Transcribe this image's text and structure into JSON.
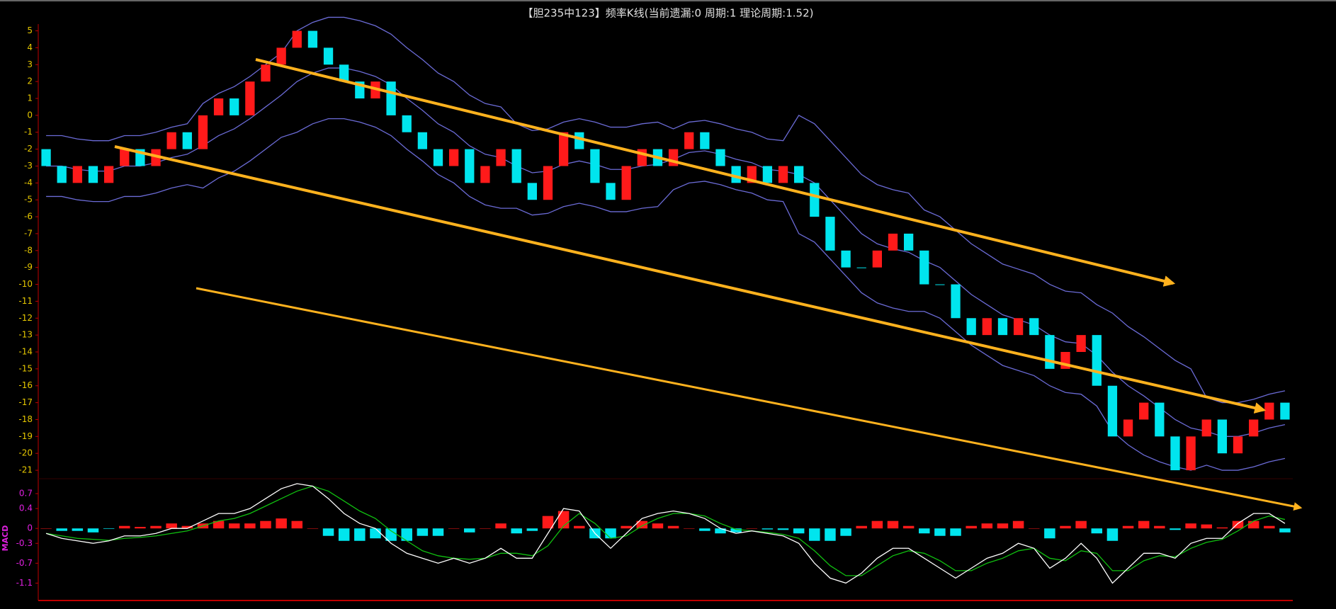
{
  "chart_data": [
    {
      "type": "candlestick",
      "title": "【胆235中123】频率K线(当前遗漏:0 周期:1 理论周期:1.52)",
      "open": [
        -2,
        -3,
        -4,
        -3,
        -4,
        -3,
        -2,
        -3,
        -2,
        -1,
        -2,
        0,
        1,
        0,
        2,
        3,
        4,
        5,
        4,
        3,
        2,
        1,
        2,
        0,
        -1,
        -2,
        -3,
        -2,
        -4,
        -3,
        -2,
        -4,
        -5,
        -3,
        -1,
        -2,
        -4,
        -5,
        -3,
        -2,
        -3,
        -2,
        -1,
        -2,
        -3,
        -4,
        -3,
        -4,
        -3,
        -4,
        -6,
        -8,
        -9,
        -9,
        -8,
        -7,
        -8,
        -10,
        -10,
        -12,
        -13,
        -12,
        -13,
        -12,
        -13,
        -15,
        -14,
        -13,
        -16,
        -19,
        -18,
        -17,
        -19,
        -21,
        -19,
        -18,
        -20,
        -19,
        -18,
        -17
      ],
      "close": [
        -3,
        -4,
        -3,
        -4,
        -3,
        -2,
        -3,
        -2,
        -1,
        -2,
        0,
        1,
        0,
        2,
        3,
        4,
        5,
        4,
        3,
        2,
        1,
        2,
        0,
        -1,
        -2,
        -3,
        -2,
        -4,
        -3,
        -2,
        -4,
        -5,
        -3,
        -1,
        -2,
        -4,
        -5,
        -3,
        -2,
        -3,
        -2,
        -1,
        -2,
        -3,
        -4,
        -3,
        -4,
        -3,
        -4,
        -6,
        -8,
        -9,
        -9,
        -8,
        -7,
        -8,
        -10,
        -10,
        -12,
        -13,
        -12,
        -13,
        -12,
        -13,
        -15,
        -14,
        -13,
        -16,
        -19,
        -18,
        -17,
        -19,
        -21,
        -19,
        -18,
        -20,
        -19,
        -18,
        -17,
        -18
      ],
      "up_color": "#ff1a1a",
      "down_color": "#00e5ee",
      "bands": {
        "upper": [
          -1.2,
          -1.2,
          -1.4,
          -1.5,
          -1.5,
          -1.2,
          -1.2,
          -1,
          -0.7,
          -0.5,
          0.7,
          1.3,
          1.7,
          2.3,
          3,
          3.7,
          5,
          5.5,
          5.8,
          5.8,
          5.6,
          5.3,
          4.8,
          4,
          3.3,
          2.5,
          2,
          1.2,
          0.7,
          0.5,
          -0.5,
          -0.9,
          -0.8,
          -0.4,
          -0.2,
          -0.4,
          -0.7,
          -0.7,
          -0.5,
          -0.4,
          -0.8,
          -0.4,
          -0.3,
          -0.5,
          -0.8,
          -1,
          -1.4,
          -1.5,
          0,
          -0.5,
          -1.5,
          -2.5,
          -3.5,
          -4.1,
          -4.4,
          -4.6,
          -5.6,
          -6,
          -6.8,
          -7.6,
          -8.2,
          -8.8,
          -9.1,
          -9.4,
          -10,
          -10.4,
          -10.5,
          -11.2,
          -11.7,
          -12.5,
          -13.1,
          -13.8,
          -14.5,
          -15,
          -16.7,
          -17,
          -17,
          -16.8,
          -16.5,
          -16.3
        ],
        "mid": [
          -3,
          -3,
          -3.2,
          -3.3,
          -3.3,
          -3,
          -3,
          -2.8,
          -2.5,
          -2.3,
          -1.8,
          -1.2,
          -0.8,
          -0.2,
          0.5,
          1.2,
          2,
          2.5,
          2.8,
          2.8,
          2.6,
          2.3,
          1.8,
          1,
          0.3,
          -0.5,
          -1,
          -1.8,
          -2.3,
          -2.5,
          -3,
          -3.4,
          -3.3,
          -2.9,
          -2.7,
          -2.9,
          -3.2,
          -3.2,
          -3,
          -2.9,
          -2.6,
          -2.2,
          -2.1,
          -2.3,
          -2.6,
          -2.8,
          -3.2,
          -3.3,
          -3.5,
          -4,
          -5,
          -6,
          -7,
          -7.6,
          -7.9,
          -8.1,
          -8.6,
          -9,
          -9.8,
          -10.6,
          -11.2,
          -11.8,
          -12.1,
          -12.4,
          -13,
          -13.4,
          -13.5,
          -14.2,
          -15.2,
          -16,
          -16.6,
          -17.3,
          -18,
          -18.5,
          -18.7,
          -19,
          -19,
          -18.8,
          -18.5,
          -18.3
        ],
        "lower": [
          -4.8,
          -4.8,
          -5,
          -5.1,
          -5.1,
          -4.8,
          -4.8,
          -4.6,
          -4.3,
          -4.1,
          -4.3,
          -3.7,
          -3.3,
          -2.7,
          -2,
          -1.3,
          -1,
          -0.5,
          -0.2,
          -0.2,
          -0.4,
          -0.7,
          -1.2,
          -2,
          -2.7,
          -3.5,
          -4,
          -4.8,
          -5.3,
          -5.5,
          -5.5,
          -5.9,
          -5.8,
          -5.4,
          -5.2,
          -5.4,
          -5.7,
          -5.7,
          -5.5,
          -5.4,
          -4.4,
          -4,
          -3.9,
          -4.1,
          -4.4,
          -4.6,
          -5,
          -5.1,
          -7,
          -7.5,
          -8.5,
          -9.5,
          -10.5,
          -11.1,
          -11.4,
          -11.6,
          -11.6,
          -12,
          -12.8,
          -13.6,
          -14.2,
          -14.8,
          -15.1,
          -15.4,
          -16,
          -16.4,
          -16.5,
          -17.2,
          -18.7,
          -19.5,
          -20.1,
          -20.5,
          -20.8,
          -21,
          -20.7,
          -21,
          -21,
          -20.8,
          -20.5,
          -20.3
        ]
      },
      "band_color": "#6b6bd6",
      "ylim": [
        5.4,
        -21.5
      ],
      "yticks": [
        5,
        4,
        3,
        2,
        1,
        0,
        -1,
        -2,
        -3,
        -4,
        -5,
        -6,
        -7,
        -8,
        -9,
        -10,
        -11,
        -12,
        -13,
        -14,
        -15,
        -16,
        -17,
        -18,
        -19,
        -20,
        -21
      ],
      "tick_color": "#e6c800"
    },
    {
      "type": "macd",
      "ylabel": "MACD",
      "dif": [
        -0.1,
        -0.2,
        -0.25,
        -0.3,
        -0.25,
        -0.15,
        -0.15,
        -0.1,
        0,
        0,
        0.15,
        0.3,
        0.3,
        0.4,
        0.6,
        0.8,
        0.9,
        0.85,
        0.6,
        0.3,
        0.1,
        0,
        -0.3,
        -0.5,
        -0.6,
        -0.7,
        -0.6,
        -0.7,
        -0.6,
        -0.4,
        -0.6,
        -0.6,
        -0.1,
        0.4,
        0.35,
        -0.1,
        -0.4,
        -0.1,
        0.2,
        0.3,
        0.35,
        0.3,
        0.2,
        0,
        -0.1,
        -0.05,
        -0.1,
        -0.15,
        -0.3,
        -0.7,
        -1,
        -1.1,
        -0.9,
        -0.6,
        -0.4,
        -0.4,
        -0.6,
        -0.8,
        -1,
        -0.8,
        -0.6,
        -0.5,
        -0.3,
        -0.4,
        -0.8,
        -0.6,
        -0.3,
        -0.6,
        -1.1,
        -0.8,
        -0.5,
        -0.5,
        -0.6,
        -0.3,
        -0.2,
        -0.2,
        0.1,
        0.3,
        0.3,
        0.1
      ],
      "dea": [
        -0.1,
        -0.15,
        -0.2,
        -0.22,
        -0.24,
        -0.2,
        -0.18,
        -0.15,
        -0.1,
        -0.05,
        0.05,
        0.15,
        0.2,
        0.3,
        0.45,
        0.6,
        0.75,
        0.85,
        0.75,
        0.55,
        0.35,
        0.2,
        -0.05,
        -0.25,
        -0.45,
        -0.55,
        -0.6,
        -0.62,
        -0.6,
        -0.5,
        -0.5,
        -0.55,
        -0.35,
        0.05,
        0.3,
        0.1,
        -0.2,
        -0.15,
        0.05,
        0.2,
        0.3,
        0.3,
        0.25,
        0.1,
        -0.02,
        -0.05,
        -0.08,
        -0.12,
        -0.2,
        -0.45,
        -0.75,
        -0.95,
        -0.95,
        -0.75,
        -0.55,
        -0.45,
        -0.5,
        -0.65,
        -0.85,
        -0.85,
        -0.7,
        -0.6,
        -0.45,
        -0.4,
        -0.6,
        -0.65,
        -0.45,
        -0.5,
        -0.85,
        -0.85,
        -0.65,
        -0.55,
        -0.57,
        -0.4,
        -0.28,
        -0.22,
        -0.05,
        0.15,
        0.25,
        0.18
      ],
      "hist": [
        0,
        -0.05,
        -0.05,
        -0.08,
        -0.01,
        0.05,
        0.03,
        0.05,
        0.1,
        0.05,
        0.1,
        0.15,
        0.1,
        0.1,
        0.15,
        0.2,
        0.15,
        0,
        -0.15,
        -0.25,
        -0.25,
        -0.2,
        -0.25,
        -0.25,
        -0.15,
        -0.15,
        0,
        -0.08,
        0,
        0.1,
        -0.1,
        -0.05,
        0.25,
        0.35,
        0.05,
        -0.2,
        -0.2,
        0.05,
        0.15,
        0.1,
        0.05,
        0,
        -0.05,
        -0.1,
        -0.08,
        0,
        -0.02,
        -0.03,
        -0.1,
        -0.25,
        -0.25,
        -0.15,
        0.05,
        0.15,
        0.15,
        0.05,
        -0.1,
        -0.15,
        -0.15,
        0.05,
        0.1,
        0.1,
        0.15,
        0,
        -0.2,
        0.05,
        0.15,
        -0.1,
        -0.25,
        0.05,
        0.15,
        0.05,
        -0.03,
        0.1,
        0.08,
        0.02,
        0.15,
        0.15,
        0.05,
        -0.08
      ],
      "dif_color": "#ffffff",
      "dea_color": "#10c010",
      "up_color": "#ff1a1a",
      "down_color": "#00e5ee",
      "ylim": [
        1.0,
        -1.45
      ],
      "yticks": [
        0.7,
        0.4,
        0,
        -0.3,
        -0.7,
        -1.1
      ],
      "tick_color": "#e020e0"
    }
  ]
}
